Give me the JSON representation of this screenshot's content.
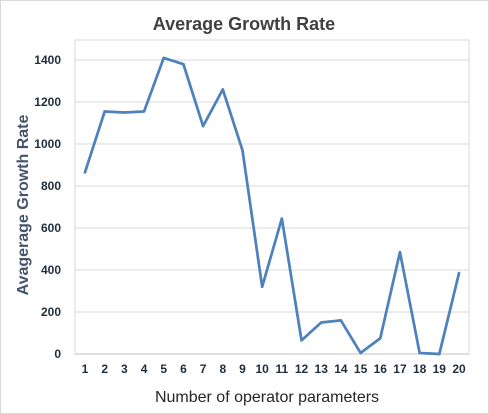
{
  "chart_data": {
    "type": "line",
    "title": "Average Growth Rate",
    "xlabel": "Number of operator parameters",
    "ylabel": "Avagerage Growth Rate",
    "categories": [
      "1",
      "2",
      "3",
      "4",
      "5",
      "6",
      "7",
      "8",
      "9",
      "10",
      "11",
      "12",
      "13",
      "14",
      "15",
      "16",
      "17",
      "18",
      "19",
      "20"
    ],
    "series": [
      {
        "values": [
          865,
          1155,
          1150,
          1155,
          1410,
          1380,
          1085,
          1260,
          970,
          320,
          645,
          65,
          150,
          160,
          5,
          75,
          485,
          5,
          0,
          385
        ],
        "color": "#4f81bd"
      }
    ],
    "ylim": [
      0,
      1400
    ],
    "yticks": [
      0,
      200,
      400,
      600,
      800,
      1000,
      1200,
      1400
    ],
    "grid": true,
    "legend": "none"
  }
}
